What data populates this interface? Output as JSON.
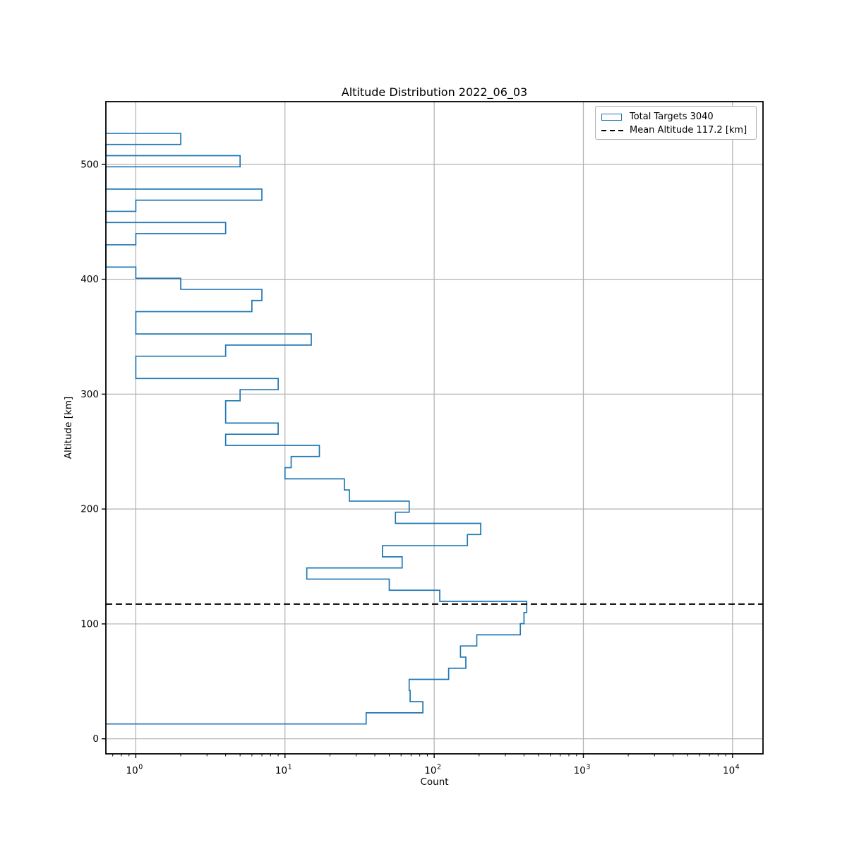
{
  "title": "Altitude Distribution 2022_06_03",
  "axes": {
    "xlabel": "Count",
    "ylabel": "Altitude [km]",
    "x_scale": "log",
    "xlim": [
      0.63,
      16000
    ],
    "ylim": [
      -13.1,
      554.6
    ],
    "x_tick_exponents": [
      0,
      1,
      2,
      3,
      4
    ],
    "x_tick_base": "10",
    "y_ticks": [
      0,
      100,
      200,
      300,
      400,
      500
    ],
    "grid": true
  },
  "legend": {
    "items": [
      {
        "label": "Total Targets 3040",
        "swatch": "step-patch"
      },
      {
        "label": "Mean Altitude 117.2 [km]",
        "swatch": "dashed-line"
      }
    ]
  },
  "chart_data": {
    "type": "bar",
    "subtype": "horizontal_step_histogram",
    "title": "Altitude Distribution 2022_06_03",
    "xlabel": "Count",
    "ylabel": "Altitude [km]",
    "series_label": "Total Targets 3040",
    "total_targets": 3040,
    "mean_altitude_km": 117.2,
    "mean_line_label": "Mean Altitude 117.2 [km]",
    "bin_start_km": 12.9,
    "bin_width_km": 9.7,
    "counts_bottom_to_top": [
      35,
      84,
      69,
      68,
      125,
      163,
      150,
      193,
      378,
      400,
      417,
      109,
      50,
      14,
      61,
      45,
      167,
      205,
      55,
      68,
      27,
      25,
      10,
      11,
      17,
      4,
      9,
      4,
      4,
      5,
      9,
      1,
      1,
      4,
      15,
      1,
      1,
      6,
      7,
      2,
      1,
      0,
      0,
      1,
      4,
      0,
      1,
      7,
      0,
      0,
      5,
      0,
      2
    ],
    "xlim": [
      0.63,
      16000
    ],
    "ylim": [
      -13.1,
      554.6
    ],
    "legend_position": "upper right",
    "grid": true
  },
  "colors": {
    "histogram": "#1f77b4",
    "mean_line": "#000000",
    "grid": "#b0b0b0",
    "spine": "#000000",
    "text": "#000000",
    "background": "#ffffff"
  }
}
